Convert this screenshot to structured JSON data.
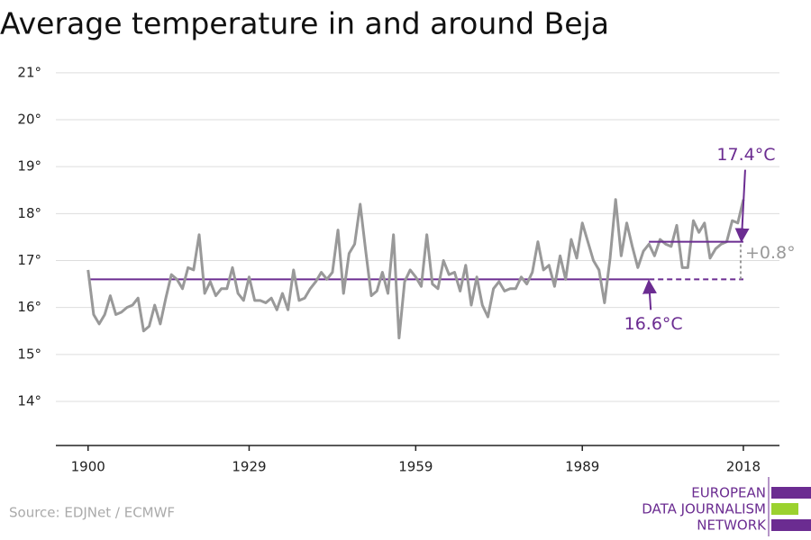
{
  "chart_data": {
    "type": "line",
    "title": "Average temperature in and around Beja",
    "source": "Source: EDJNet / ECMWF",
    "logo": [
      "EUROPEAN",
      "DATA JOURNALISM",
      "NETWORK"
    ],
    "x": [
      1900,
      1901,
      1902,
      1903,
      1904,
      1905,
      1906,
      1907,
      1908,
      1909,
      1910,
      1911,
      1912,
      1913,
      1914,
      1915,
      1916,
      1917,
      1918,
      1919,
      1920,
      1921,
      1922,
      1923,
      1924,
      1925,
      1926,
      1927,
      1928,
      1929,
      1930,
      1931,
      1932,
      1933,
      1934,
      1935,
      1936,
      1937,
      1938,
      1939,
      1940,
      1941,
      1942,
      1943,
      1944,
      1945,
      1946,
      1947,
      1948,
      1949,
      1950,
      1951,
      1952,
      1953,
      1954,
      1955,
      1956,
      1957,
      1958,
      1959,
      1960,
      1961,
      1962,
      1963,
      1964,
      1965,
      1966,
      1967,
      1968,
      1969,
      1970,
      1971,
      1972,
      1973,
      1974,
      1975,
      1976,
      1977,
      1978,
      1979,
      1980,
      1981,
      1982,
      1983,
      1984,
      1985,
      1986,
      1987,
      1988,
      1989,
      1990,
      1991,
      1992,
      1993,
      1994,
      1995,
      1996,
      1997,
      1998,
      1999,
      2000,
      2001,
      2002,
      2003,
      2004,
      2005,
      2006,
      2007,
      2008,
      2009,
      2010,
      2011,
      2012,
      2013,
      2014,
      2015,
      2016,
      2017,
      2018
    ],
    "series": [
      {
        "name": "Average temperature",
        "color": "#999999",
        "values": [
          16.8,
          15.85,
          15.65,
          15.85,
          16.25,
          15.85,
          15.9,
          16.0,
          16.05,
          16.2,
          15.5,
          15.6,
          16.05,
          15.65,
          16.2,
          16.7,
          16.6,
          16.4,
          16.85,
          16.8,
          17.55,
          16.3,
          16.55,
          16.25,
          16.4,
          16.4,
          16.85,
          16.3,
          16.15,
          16.65,
          16.15,
          16.15,
          16.1,
          16.2,
          15.95,
          16.3,
          15.95,
          16.8,
          16.15,
          16.2,
          16.4,
          16.55,
          16.75,
          16.6,
          16.75,
          17.65,
          16.3,
          17.15,
          17.35,
          18.2,
          17.2,
          16.25,
          16.35,
          16.75,
          16.3,
          17.55,
          15.35,
          16.55,
          16.8,
          16.65,
          16.45,
          17.55,
          16.5,
          16.4,
          17.0,
          16.7,
          16.75,
          16.35,
          16.9,
          16.05,
          16.65,
          16.05,
          15.8,
          16.4,
          16.55,
          16.35,
          16.4,
          16.4,
          16.65,
          16.5,
          16.75,
          17.4,
          16.8,
          16.9,
          16.45,
          17.1,
          16.6,
          17.45,
          17.05,
          17.8,
          17.4,
          17.0,
          16.8,
          16.1,
          17.05,
          18.3,
          17.1,
          17.8,
          17.3,
          16.85,
          17.2,
          17.35,
          17.1,
          17.45,
          17.35,
          17.3,
          17.75,
          16.85,
          16.85,
          17.85,
          17.6,
          17.8,
          17.05,
          17.25,
          17.35,
          17.4,
          17.85,
          17.8,
          18.3
        ]
      }
    ],
    "reference_lines": [
      {
        "value": 16.6,
        "label": "16.6°C",
        "start": 1900,
        "end": 2001,
        "dashed_end": 2018,
        "color": "#6b2c91"
      },
      {
        "value": 17.4,
        "label": "17.4°C",
        "start": 2001,
        "end": 2018,
        "color": "#6b2c91"
      }
    ],
    "difference_label": "+0.8°",
    "xlim": [
      1894.2,
      2024.5
    ],
    "ylim": [
      13.06,
      21.4
    ],
    "xticks": [
      1900,
      1929,
      1959,
      1989,
      2018
    ],
    "yticks": [
      {
        "value": 14,
        "label": "14°"
      },
      {
        "value": 15,
        "label": "15°"
      },
      {
        "value": 16,
        "label": "16°"
      },
      {
        "value": 17,
        "label": "17°"
      },
      {
        "value": 18,
        "label": "18°"
      },
      {
        "value": 19,
        "label": "19°"
      },
      {
        "value": 20,
        "label": "20°"
      },
      {
        "value": 21,
        "label": "21°"
      }
    ],
    "grid": true
  }
}
